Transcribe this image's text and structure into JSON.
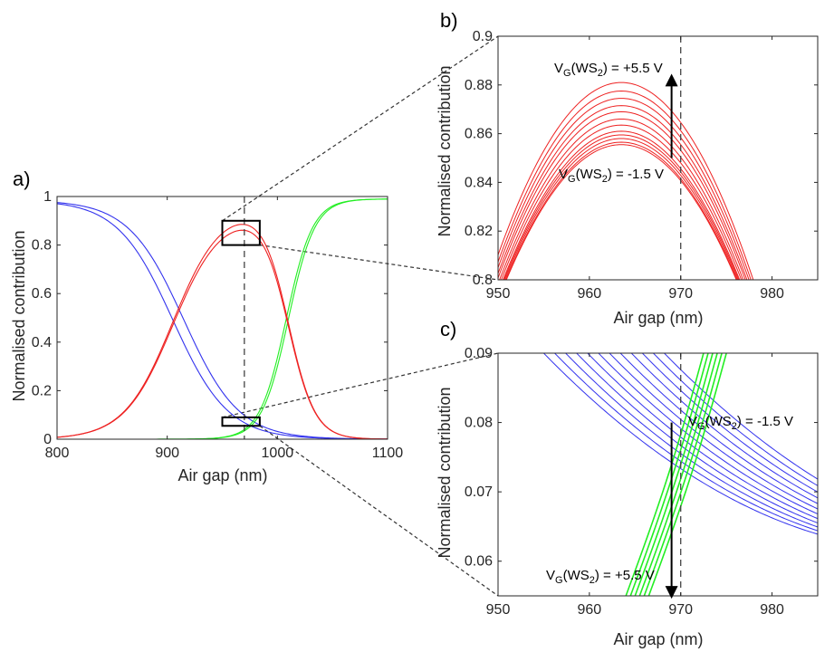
{
  "colors": {
    "blue": "#3333ee",
    "red": "#ee2222",
    "green": "#22ee22",
    "axis": "#262626"
  },
  "chart_data": [
    {
      "id": "a",
      "panel_label": "a)",
      "type": "line",
      "xlabel": "Air gap (nm)",
      "ylabel": "Normalised contribution",
      "xlim": [
        800,
        1100
      ],
      "ylim": [
        0,
        1
      ],
      "xticks": [
        800,
        900,
        1000,
        1100
      ],
      "yticks": [
        0,
        0.2,
        0.4,
        0.6,
        0.8,
        1
      ],
      "ytick_labels": [
        "0",
        "0.2",
        "0.4",
        "0.6",
        "0.8",
        "1"
      ],
      "vline_x": 970,
      "series": [
        {
          "name": "blue",
          "color": "blue",
          "params": [
            [
              905,
              25
            ],
            [
              915,
              25
            ]
          ]
        },
        {
          "name": "green",
          "color": "green",
          "params": [
            [
              1008,
              12
            ],
            [
              1010,
              12
            ]
          ]
        },
        {
          "name": "red",
          "color": "red",
          "params": [
            [
              0.858,
              963
            ],
            [
              0.882,
              963
            ]
          ]
        }
      ],
      "zoom_boxes": [
        {
          "x": [
            950,
            984
          ],
          "y": [
            0.8,
            0.9
          ],
          "target": "b"
        },
        {
          "x": [
            950,
            984
          ],
          "y": [
            0.055,
            0.09
          ],
          "target": "c"
        }
      ]
    },
    {
      "id": "b",
      "panel_label": "b)",
      "type": "line",
      "xlabel": "Air gap (nm)",
      "ylabel": "Normalised contribution",
      "xlim": [
        950,
        985
      ],
      "ylim": [
        0.8,
        0.9
      ],
      "xticks": [
        950,
        960,
        970,
        980
      ],
      "yticks": [
        0.8,
        0.82,
        0.84,
        0.86,
        0.88,
        0.9
      ],
      "ytick_labels": [
        "0.8",
        "0.82",
        "0.84",
        "0.86",
        "0.88",
        "0.9"
      ],
      "vline_x": 970,
      "series_color": "red",
      "peaks": [
        0.8555,
        0.8565,
        0.858,
        0.8595,
        0.861,
        0.8635,
        0.866,
        0.869,
        0.8715,
        0.8745,
        0.8775,
        0.881
      ],
      "peak_x": 963.5,
      "curvature": 0.00035,
      "arrow": {
        "x": 969,
        "from_y": 0.85,
        "to_y": 0.882
      },
      "annotations": [
        {
          "prefix": "V",
          "sub1": "G",
          "mid": "(WS",
          "sub2": "2",
          "suffix": ") = +5.5 V"
        },
        {
          "prefix": "V",
          "sub1": "G",
          "mid": "(WS",
          "sub2": "2",
          "suffix": ") = -1.5 V"
        }
      ]
    },
    {
      "id": "c",
      "panel_label": "c)",
      "type": "line",
      "xlabel": "Air gap (nm)",
      "ylabel": "Normalised contribution",
      "xlim": [
        950,
        985
      ],
      "ylim": [
        0.055,
        0.09
      ],
      "xticks": [
        950,
        960,
        970,
        980
      ],
      "yticks": [
        0.06,
        0.07,
        0.08,
        0.09
      ],
      "ytick_labels": [
        "0.06",
        "0.07",
        "0.08",
        "0.09"
      ],
      "vline_x": 970,
      "blue_x_at_top": [
        955,
        956.2,
        957.4,
        958.6,
        959.8,
        961,
        962.2,
        963.4,
        964.6,
        965.8,
        967,
        968.2
      ],
      "blue_slope": -0.00135,
      "blue_curv": 1.6e-05,
      "green_x_at_bottom": [
        964,
        964.5,
        965,
        965.5,
        966,
        966.5
      ],
      "green_x_at_top": [
        972.5,
        973,
        973.5,
        974,
        974.5,
        975
      ],
      "arrow": {
        "x": 969,
        "from_y": 0.08,
        "to_y": 0.0555
      },
      "annotations": [
        {
          "prefix": "V",
          "sub1": "G",
          "mid": "(WS",
          "sub2": "2",
          "suffix": ") = -1.5 V"
        },
        {
          "prefix": "V",
          "sub1": "G",
          "mid": "(WS",
          "sub2": "2",
          "suffix": ") = +5.5 V"
        }
      ]
    }
  ]
}
